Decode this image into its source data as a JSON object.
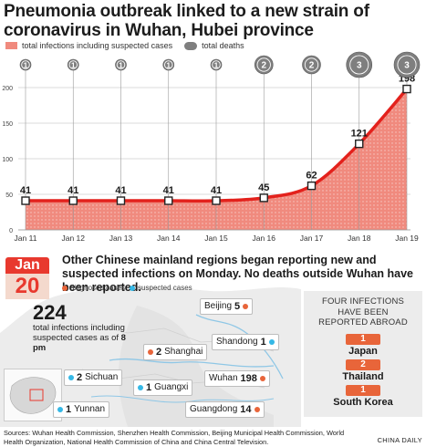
{
  "title": "Pneumonia outbreak linked to a new strain of coronavirus in Wuhan, Hubei province",
  "legend": {
    "infections_label": "total infections including suspected cases",
    "deaths_label": "total deaths"
  },
  "colors": {
    "area": "#f08a7e",
    "line": "#e3211c",
    "death_bubble": "#7f7f7f",
    "diagnosed": "#e8653a",
    "suspected": "#35b8e6"
  },
  "chart_data": {
    "type": "area",
    "categories": [
      "Jan 11",
      "Jan 12",
      "Jan 13",
      "Jan 14",
      "Jan 15",
      "Jan 16",
      "Jan 17",
      "Jan 18",
      "Jan 19"
    ],
    "series": [
      {
        "name": "total infections including suspected cases",
        "values": [
          41,
          41,
          41,
          41,
          41,
          45,
          62,
          121,
          198
        ]
      },
      {
        "name": "total deaths",
        "values": [
          1,
          1,
          1,
          1,
          1,
          2,
          2,
          3,
          3
        ]
      }
    ],
    "ylim": [
      0,
      200
    ],
    "yticks": [
      0,
      50,
      100,
      150,
      200
    ],
    "grid": true,
    "legend": "top-left"
  },
  "headline": "Other Chinese mainland regions began reporting new and suspected infections on Monday. No deaths outside Wuhan have been reported.",
  "date_badge": {
    "month": "Jan",
    "day": "20"
  },
  "map_legend": {
    "diagnosed": "diagnosed cases",
    "suspected": "suspected cases"
  },
  "summary": {
    "total": "224",
    "text": "total infections including suspected cases as of",
    "time": "8 pm"
  },
  "regions": [
    {
      "name": "Beijing",
      "count": "5",
      "kind": "diagnosed"
    },
    {
      "name": "Shandong",
      "count": "1",
      "kind": "suspected"
    },
    {
      "name": "Shanghai",
      "count": "2",
      "kind": "diagnosed"
    },
    {
      "name": "Wuhan",
      "count": "198",
      "kind": "diagnosed"
    },
    {
      "name": "Sichuan",
      "count": "2",
      "kind": "suspected"
    },
    {
      "name": "Guangxi",
      "count": "1",
      "kind": "suspected"
    },
    {
      "name": "Guangdong",
      "count": "14",
      "kind": "diagnosed"
    },
    {
      "name": "Yunnan",
      "count": "1",
      "kind": "suspected"
    }
  ],
  "abroad": {
    "heading": "FOUR INFECTIONS HAVE BEEN REPORTED ABROAD",
    "items": [
      {
        "count": "1",
        "country": "Japan"
      },
      {
        "count": "2",
        "country": "Thailand"
      },
      {
        "count": "1",
        "country": "South Korea"
      }
    ]
  },
  "sources": "Sources: Wuhan Health Commission, Shenzhen Health Commission, Beijing Municipal Health Commission, World Health Organization, National Health Commission of China and China Central Television.",
  "credit": "CHINA DAILY"
}
